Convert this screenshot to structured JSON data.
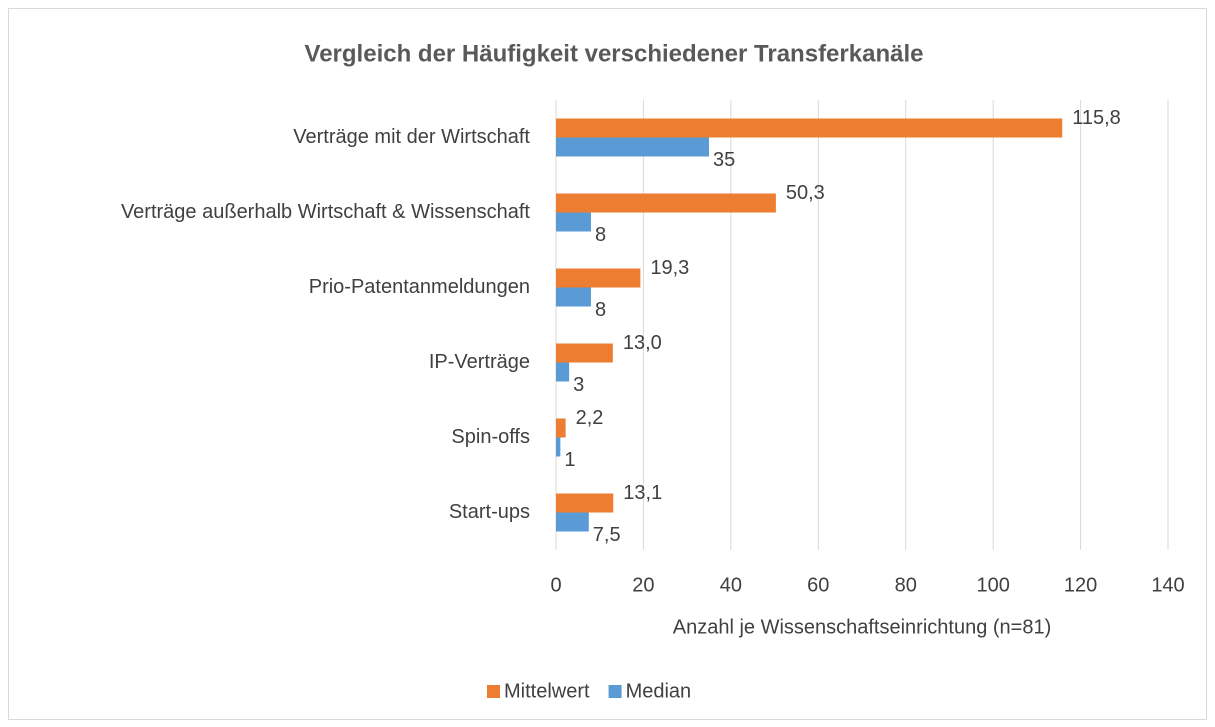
{
  "chart_data": {
    "type": "bar",
    "orientation": "horizontal",
    "title": "Vergleich der Häufigkeit verschiedener Transferkanäle",
    "x_label": "Anzahl je Wissenschaftseinrichtung (n=81)",
    "categories": [
      "Verträge mit der Wirtschaft",
      "Verträge außerhalb Wirtschaft & Wissenschaft",
      "Prio-Patentanmeldungen",
      "IP-Verträge",
      "Spin-offs",
      "Start-ups"
    ],
    "series": [
      {
        "name": "Mittelwert",
        "color": "#ed7d31",
        "values": [
          115.8,
          50.3,
          19.3,
          13.0,
          2.2,
          13.1
        ],
        "value_labels": [
          "115,8",
          "50,3",
          "19,3",
          "13,0",
          "2,2",
          "13,1"
        ]
      },
      {
        "name": "Median",
        "color": "#5b9bd5",
        "values": [
          35,
          8,
          8,
          3,
          1,
          7.5
        ],
        "value_labels": [
          "35",
          "8",
          "8",
          "3",
          "1",
          "7,5"
        ]
      }
    ],
    "xlim": [
      0,
      140
    ],
    "xticks": [
      0,
      20,
      40,
      60,
      80,
      100,
      120,
      140
    ],
    "grid": true,
    "legend": "bottom"
  }
}
